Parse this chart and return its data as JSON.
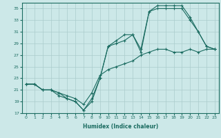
{
  "xlabel": "Humidex (Indice chaleur)",
  "bg_color": "#cce8e8",
  "grid_color": "#aacccc",
  "line_color": "#1a6b60",
  "xlim": [
    -0.5,
    23.5
  ],
  "ylim": [
    17,
    36
  ],
  "yticks": [
    17,
    19,
    21,
    23,
    25,
    27,
    29,
    31,
    33,
    35
  ],
  "xticks": [
    0,
    1,
    2,
    3,
    4,
    5,
    6,
    7,
    8,
    9,
    10,
    11,
    12,
    13,
    14,
    15,
    16,
    17,
    18,
    19,
    20,
    21,
    22,
    23
  ],
  "line1_x": [
    0,
    1,
    2,
    3,
    4,
    5,
    6,
    7,
    8,
    9,
    10,
    11,
    12,
    13,
    14,
    15,
    16,
    17,
    18,
    19,
    20,
    21,
    22,
    23
  ],
  "line1_y": [
    22,
    22,
    21,
    21,
    20,
    19.5,
    19,
    17.5,
    19.5,
    23,
    28.5,
    29.5,
    30.5,
    30.5,
    28,
    34.5,
    35.5,
    35.5,
    35.5,
    35.5,
    33.5,
    31,
    28.5,
    28
  ],
  "line2_x": [
    0,
    1,
    2,
    3,
    4,
    5,
    6,
    7,
    8,
    9,
    10,
    11,
    12,
    13,
    14,
    15,
    16,
    17,
    18,
    19,
    20,
    21,
    22,
    23
  ],
  "line2_y": [
    22,
    22,
    21,
    21,
    20.5,
    19.5,
    19,
    17.5,
    19,
    23,
    28.5,
    29,
    29.5,
    30.5,
    27.5,
    34.5,
    35,
    35,
    35,
    35,
    33,
    31,
    28.5,
    28
  ],
  "line3_x": [
    0,
    1,
    2,
    3,
    4,
    5,
    6,
    7,
    8,
    9,
    10,
    11,
    12,
    13,
    14,
    15,
    16,
    17,
    18,
    19,
    20,
    21,
    22,
    23
  ],
  "line3_y": [
    22,
    22,
    21,
    21,
    20.5,
    20,
    19.5,
    18.5,
    20.5,
    23.5,
    24.5,
    25,
    25.5,
    26,
    27,
    27.5,
    28,
    28,
    27.5,
    27.5,
    28,
    27.5,
    28,
    28
  ]
}
